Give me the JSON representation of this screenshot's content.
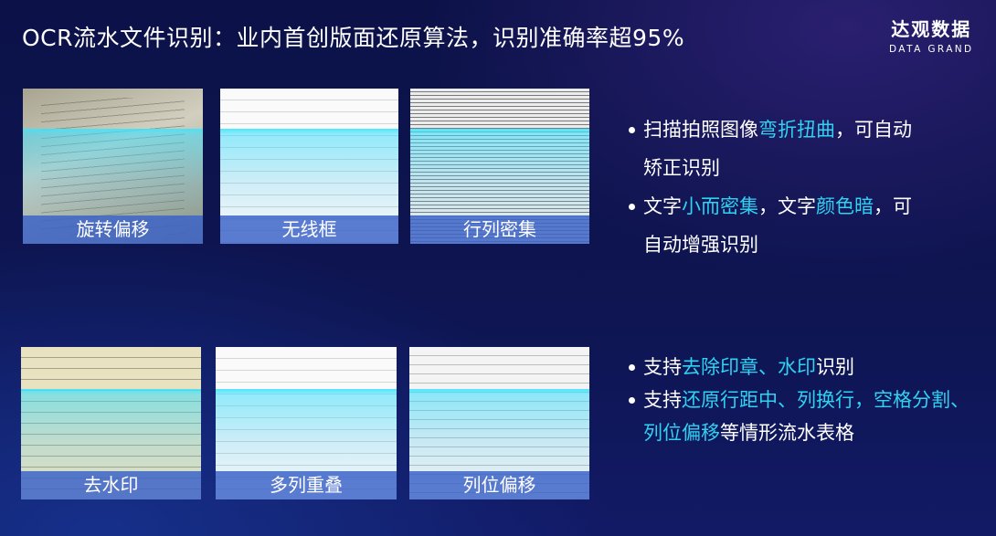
{
  "title": "OCR流水文件识别：业内首创版面还原算法，识别准确率超95%",
  "logo": {
    "cn": "达观数据",
    "en": "DATA GRAND"
  },
  "colors": {
    "highlight": "#2fd3f2",
    "background": "#0e1552",
    "label_bar": "#3c64c8"
  },
  "cards": [
    {
      "label": "旋转偏移"
    },
    {
      "label": "无线框"
    },
    {
      "label": "行列密集"
    },
    {
      "label": "去水印"
    },
    {
      "label": "多列重叠"
    },
    {
      "label": "列位偏移"
    }
  ],
  "bullets_top": [
    {
      "segments": [
        {
          "text": "扫描拍照图像",
          "hl": false
        },
        {
          "text": "弯折扭曲",
          "hl": true
        },
        {
          "text": "，可自动",
          "hl": false
        }
      ],
      "cont": "矫正识别"
    },
    {
      "segments": [
        {
          "text": "文字",
          "hl": false
        },
        {
          "text": "小而密集",
          "hl": true
        },
        {
          "text": "，文字",
          "hl": false
        },
        {
          "text": "颜色暗",
          "hl": true
        },
        {
          "text": "，可",
          "hl": false
        }
      ],
      "cont": "自动增强识别"
    }
  ],
  "bullets_bottom": [
    {
      "segments": [
        {
          "text": "支持",
          "hl": false
        },
        {
          "text": "去除印章、水印",
          "hl": true
        },
        {
          "text": "识别",
          "hl": false
        }
      ]
    },
    {
      "segments": [
        {
          "text": "支持",
          "hl": false
        },
        {
          "text": "还原行距中、列换行，空格分割、",
          "hl": true
        }
      ],
      "cont_segments": [
        {
          "text": "列位偏移",
          "hl": true
        },
        {
          "text": "等情形流水表格",
          "hl": false
        }
      ]
    }
  ]
}
